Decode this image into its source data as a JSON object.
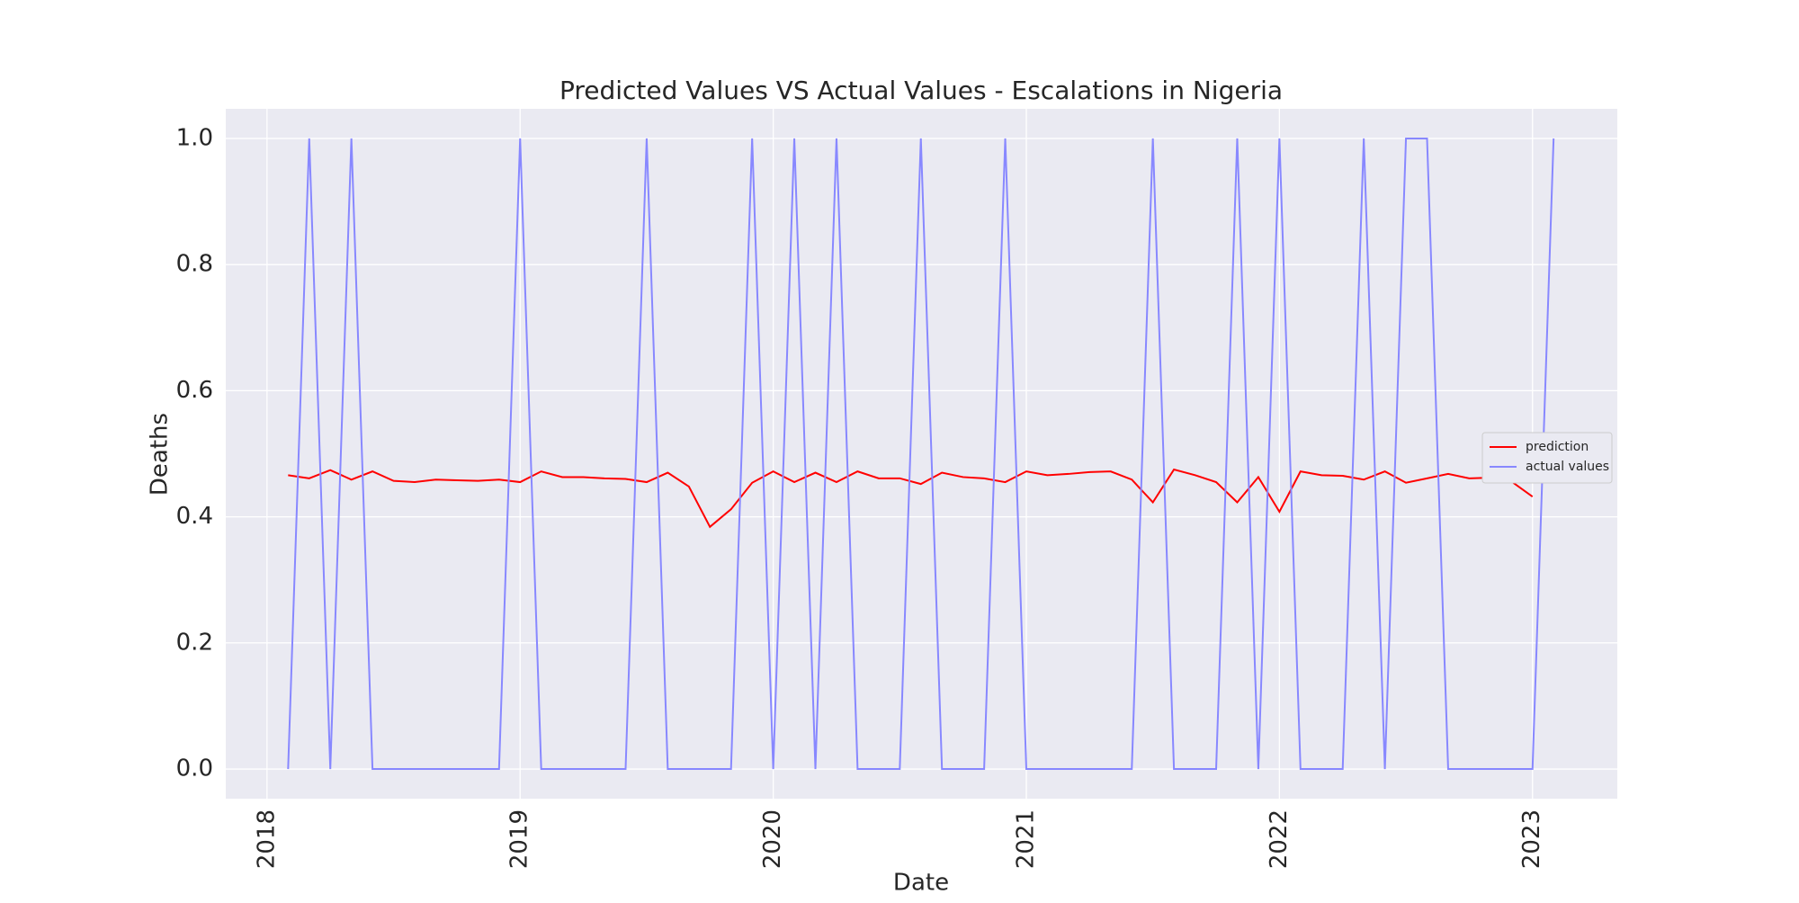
{
  "chart_data": {
    "type": "line",
    "title": "Predicted Values VS Actual Values - Escalations in Nigeria",
    "xlabel": "Date",
    "ylabel": "Deaths",
    "x": [
      2018.0833,
      2018.1667,
      2018.25,
      2018.3333,
      2018.4167,
      2018.5,
      2018.5833,
      2018.6667,
      2018.75,
      2018.8333,
      2018.9167,
      2019,
      2019.0833,
      2019.1667,
      2019.25,
      2019.3333,
      2019.4167,
      2019.5,
      2019.5833,
      2019.6667,
      2019.75,
      2019.8333,
      2019.9167,
      2020,
      2020.0833,
      2020.1667,
      2020.25,
      2020.3333,
      2020.4167,
      2020.5,
      2020.5833,
      2020.6667,
      2020.75,
      2020.8333,
      2020.9167,
      2021,
      2021.0833,
      2021.1667,
      2021.25,
      2021.3333,
      2021.4167,
      2021.5,
      2021.5833,
      2021.6667,
      2021.75,
      2021.8333,
      2021.9167,
      2022,
      2022.0833,
      2022.1667,
      2022.25,
      2022.3333,
      2022.4167,
      2022.5,
      2022.5833,
      2022.6667,
      2022.75,
      2022.8333,
      2022.9167,
      2023,
      2023.0833
    ],
    "series": [
      {
        "name": "prediction",
        "color": "#ff0000",
        "values": [
          0.466,
          0.461,
          0.474,
          0.459,
          0.472,
          0.457,
          0.455,
          0.459,
          0.458,
          0.457,
          0.459,
          0.455,
          0.472,
          0.463,
          0.463,
          0.461,
          0.46,
          0.455,
          0.47,
          0.448,
          0.384,
          0.412,
          0.454,
          0.472,
          0.455,
          0.47,
          0.455,
          0.472,
          0.461,
          0.461,
          0.452,
          0.47,
          0.463,
          0.461,
          0.455,
          0.472,
          0.466,
          0.468,
          0.471,
          0.472,
          0.459,
          0.423,
          0.475,
          0.466,
          0.455,
          0.423,
          0.463,
          0.408,
          0.472,
          0.466,
          0.465,
          0.459,
          0.472,
          0.454,
          0.461,
          0.468,
          0.461,
          0.462,
          0.456,
          0.432,
          null
        ]
      },
      {
        "name": "actual values",
        "color": "#8888ff",
        "values": [
          0,
          1,
          0,
          1,
          0,
          0,
          0,
          0,
          0,
          0,
          0,
          1,
          0,
          0,
          0,
          0,
          0,
          1,
          0,
          0,
          0,
          0,
          1,
          0,
          1,
          0,
          1,
          0,
          0,
          0,
          1,
          0,
          0,
          0,
          1,
          0,
          0,
          0,
          0,
          0,
          0,
          1,
          0,
          0,
          0,
          1,
          0,
          1,
          0,
          0,
          0,
          1,
          0,
          1,
          1,
          0,
          0,
          0,
          0,
          0,
          1
        ]
      }
    ],
    "xlim": [
      2017.837,
      2023.335
    ],
    "xticks": [
      2018,
      2019,
      2020,
      2021,
      2022,
      2023
    ],
    "ylim": [
      -0.047,
      1.047
    ],
    "yticks": [
      {
        "value": 0,
        "label": "0.0"
      },
      0.2,
      0.4,
      0.6,
      0.8,
      {
        "value": 1,
        "label": "1.0"
      }
    ],
    "grid": true,
    "legend": "center right"
  }
}
